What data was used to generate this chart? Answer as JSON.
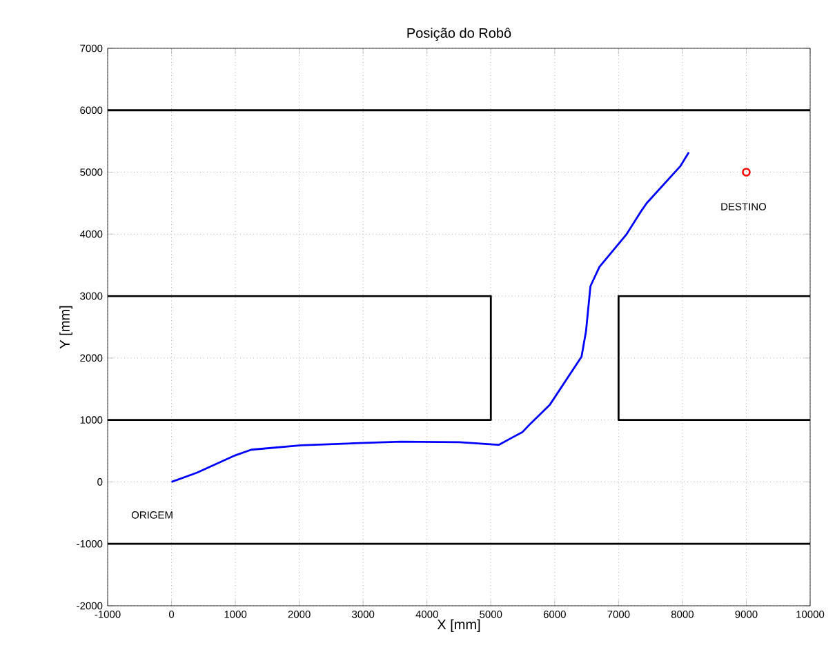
{
  "chart_data": {
    "type": "line",
    "title": "Posição do Robô",
    "xlabel": "X [mm]",
    "ylabel": "Y [mm]",
    "xlim": [
      -1000,
      10000
    ],
    "ylim": [
      -2000,
      7000
    ],
    "xticks": [
      -1000,
      0,
      1000,
      2000,
      3000,
      4000,
      5000,
      6000,
      7000,
      8000,
      9000,
      10000
    ],
    "yticks": [
      -2000,
      -1000,
      0,
      1000,
      2000,
      3000,
      4000,
      5000,
      6000,
      7000
    ],
    "grid": true,
    "marker": "none",
    "line_style": "solid",
    "annotations": [
      {
        "text": "ORIGEM",
        "x": 0,
        "y": 0
      },
      {
        "text": "DESTINO",
        "x": 9000,
        "y": 5000
      }
    ],
    "series": [
      {
        "color": "#0000ff",
        "x": [
          0,
          400,
          1000,
          1250,
          2030,
          3020,
          3590,
          4510,
          5110,
          5130,
          5360,
          5490,
          5630,
          5920,
          6420,
          6490,
          6560,
          6700,
          7120,
          7340,
          7440,
          7970,
          8100
        ],
        "values": [
          0,
          150,
          430,
          520,
          590,
          630,
          650,
          640,
          600,
          600,
          730,
          800,
          950,
          1240,
          2020,
          2430,
          3160,
          3470,
          3990,
          4350,
          4500,
          5100,
          5320
        ]
      },
      {
        "color": "#000000",
        "x": [
          -1000,
          10000
        ],
        "values": [
          6000,
          6000
        ]
      },
      {
        "color": "#000000",
        "x": [
          -1000,
          10000
        ],
        "values": [
          -1000,
          -1000
        ]
      },
      {
        "color": "#000000",
        "x": [
          -1000,
          5000,
          5000,
          -1000
        ],
        "values": [
          3000,
          3000,
          1000,
          1000
        ]
      },
      {
        "color": "#000000",
        "x": [
          10000,
          7000,
          7000,
          10000
        ],
        "values": [
          3000,
          3000,
          1000,
          1000
        ]
      },
      {
        "type": "scatter",
        "marker": "circle",
        "color": "#ff0000",
        "x": [
          9000
        ],
        "values": [
          5000
        ]
      }
    ]
  }
}
